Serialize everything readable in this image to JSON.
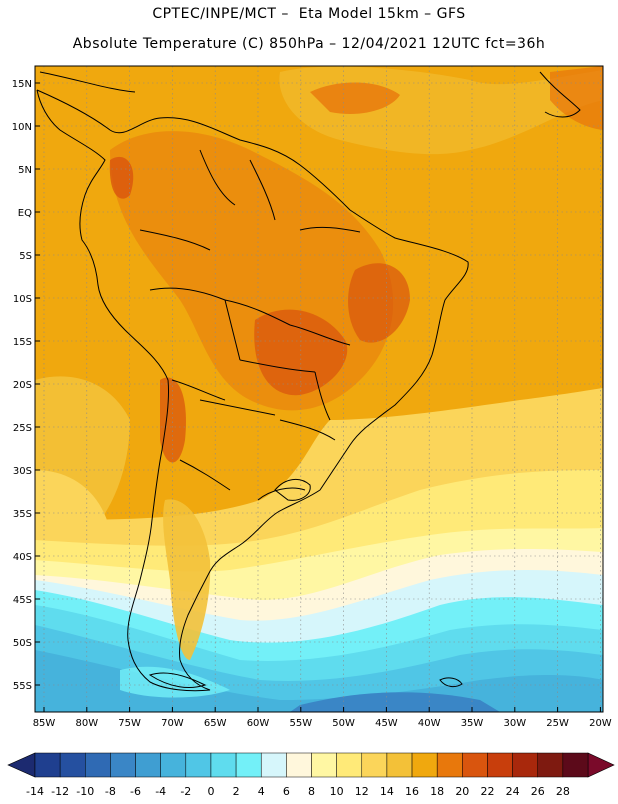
{
  "title": {
    "line1": "CPTEC/INPE/MCT –  Eta Model 15km – GFS",
    "line2": "Absolute Temperature (C) 850hPa – 12/04/2021 12UTC fct=36h"
  },
  "map": {
    "lat_labels": [
      "15N",
      "10N",
      "5N",
      "EQ",
      "5S",
      "10S",
      "15S",
      "20S",
      "25S",
      "30S",
      "35S",
      "40S",
      "45S",
      "50S",
      "55S"
    ],
    "lon_labels": [
      "85W",
      "80W",
      "75W",
      "70W",
      "65W",
      "60W",
      "55W",
      "50W",
      "45W",
      "40W",
      "35W",
      "30W",
      "25W",
      "20W"
    ]
  },
  "colorbar": {
    "labels": [
      "-14",
      "-12",
      "-10",
      "-8",
      "-6",
      "-4",
      "-2",
      "0",
      "2",
      "4",
      "6",
      "8",
      "10",
      "12",
      "14",
      "16",
      "18",
      "20",
      "22",
      "24",
      "26",
      "28"
    ],
    "colors": [
      "#1f3f8f",
      "#2550a0",
      "#2f6ab4",
      "#3a86c6",
      "#3f9ed2",
      "#46b3dc",
      "#50c6e6",
      "#5fdcee",
      "#73f0f8",
      "#d6f6fb",
      "#fff7dc",
      "#fff7a3",
      "#ffea78",
      "#fbd55a",
      "#f3c138",
      "#f0a80e",
      "#e8780c",
      "#d9550e",
      "#c83e0c",
      "#a8280c",
      "#7e1a10",
      "#5c0a1a"
    ],
    "left_cap": "#1c2a70",
    "right_cap": "#7a0a2a"
  }
}
